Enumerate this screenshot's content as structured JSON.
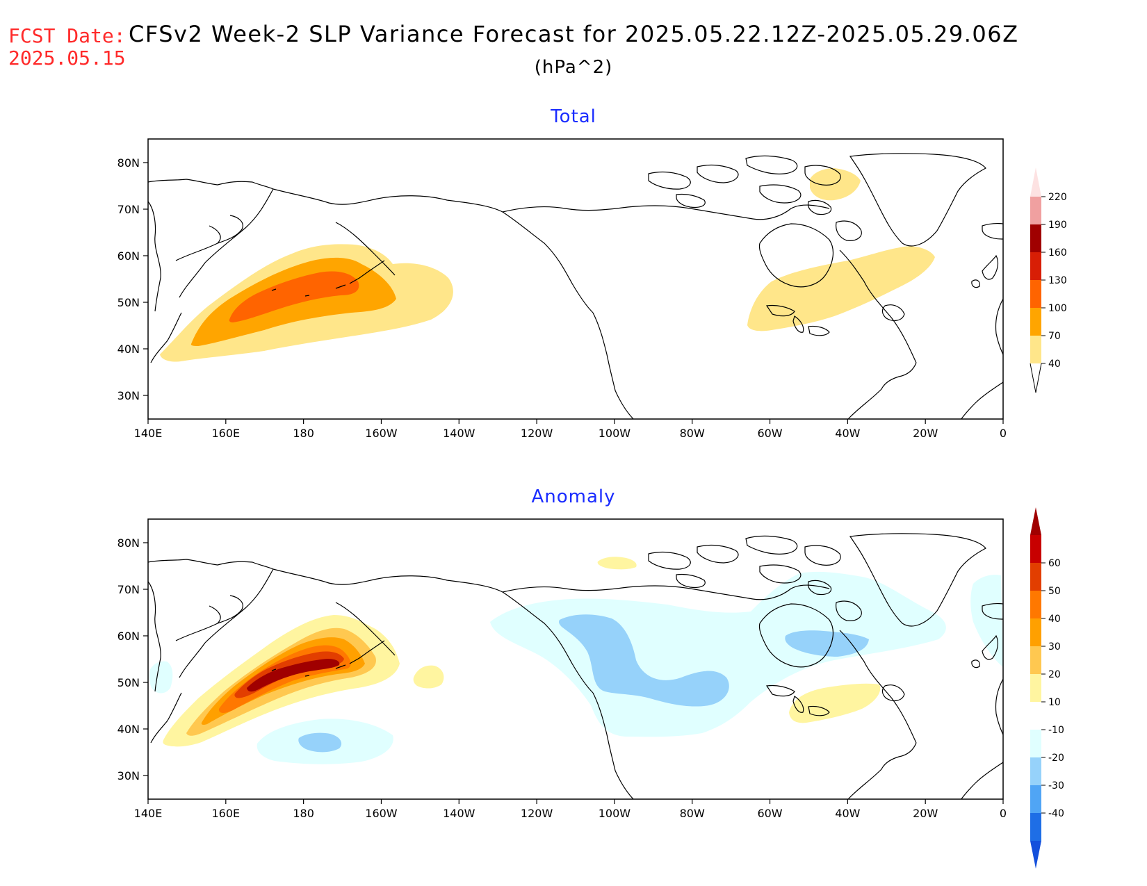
{
  "header": {
    "fcst_label": "FCST Date:",
    "fcst_date": "2025.05.15",
    "title": "CFSv2 Week-2 SLP Variance Forecast for 2025.05.22.12Z-2025.05.29.06Z",
    "units": "(hPa^2)"
  },
  "panels": [
    {
      "title": "Total"
    },
    {
      "title": "Anomaly"
    }
  ],
  "axes": {
    "lat_labels": [
      "80N",
      "70N",
      "60N",
      "50N",
      "40N",
      "30N"
    ],
    "lon_labels": [
      "140E",
      "160E",
      "180",
      "160W",
      "140W",
      "120W",
      "100W",
      "80W",
      "60W",
      "40W",
      "20W",
      "0"
    ]
  },
  "colorbars": {
    "total": {
      "labels": [
        "220",
        "190",
        "160",
        "130",
        "100",
        "70",
        "40"
      ],
      "colors": [
        "#f0a0a0",
        "#a00000",
        "#d81e05",
        "#ff6400",
        "#ffa500",
        "#ffe68a"
      ],
      "top_color": "#fde2e2"
    },
    "anomaly": {
      "labels": [
        "60",
        "50",
        "40",
        "30",
        "20",
        "10",
        "-10",
        "-20",
        "-30",
        "-40"
      ],
      "colors": [
        "#c80000",
        "#e23e00",
        "#ff7800",
        "#ffa000",
        "#ffc850",
        "#fff5a0",
        "#ffffff",
        "#e0ffff",
        "#96d2fa",
        "#50a5f5",
        "#1e6ee6"
      ],
      "top_color": "#a00000",
      "bottom_color": "#1450dc"
    }
  }
}
